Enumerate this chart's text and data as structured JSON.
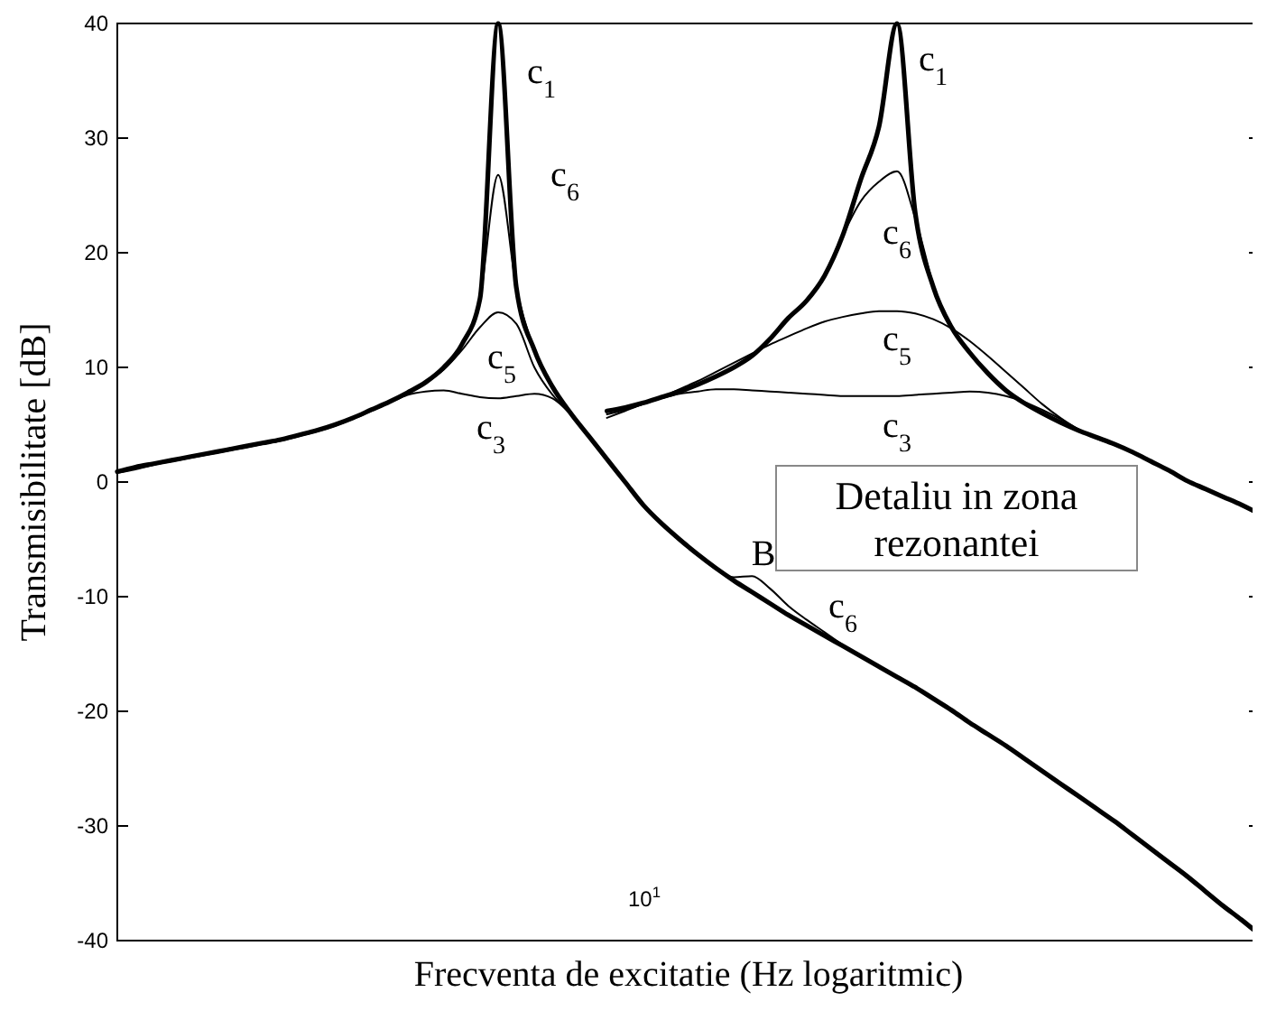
{
  "chart_data": {
    "type": "line",
    "xlabel": "Frecventa de excitatie (Hz logaritmic)",
    "ylabel": "Transmisibilitate [dB]",
    "grid": false,
    "ylim": [
      -40,
      40
    ],
    "yticks": [
      -40,
      -30,
      -20,
      -10,
      0,
      10,
      20,
      30,
      40
    ],
    "categories": [
      null,
      null,
      null,
      null,
      null,
      null,
      null,
      null,
      null,
      null,
      null,
      null,
      null,
      null,
      null,
      null,
      null,
      null,
      null,
      null,
      null,
      null,
      null,
      null,
      null,
      null,
      null,
      null,
      null,
      null,
      null,
      null,
      null,
      null,
      null,
      null,
      null,
      null,
      null,
      null,
      null,
      null,
      null,
      null,
      null,
      null,
      null,
      null,
      null,
      null,
      null,
      null,
      null,
      null,
      null,
      null,
      null,
      null,
      null,
      null,
      null,
      null,
      null,
      null
    ],
    "series": [
      {
        "color": "#000000",
        "values": [
          0.9,
          1.3,
          1.6,
          1.9,
          2.2,
          2.5,
          2.8,
          3.1,
          3.4,
          3.7,
          4.1,
          4.5,
          5.0,
          5.6,
          6.3,
          7.0,
          7.8,
          8.7,
          10,
          12,
          16,
          40,
          17,
          11.5,
          8.3,
          6.0,
          4.0,
          2.0,
          0.0,
          -2.0,
          -3.6,
          -5.0,
          -6.3,
          -7.5,
          -8.6,
          -9.6,
          -10.6,
          -11.6,
          -12.5,
          -13.4,
          -14.3,
          -15.2,
          -16.1,
          -17.0,
          -17.9,
          -18.9,
          -19.9,
          -21.0,
          -22.0,
          -23.0,
          -24.1,
          -25.2,
          -26.3,
          -27.4,
          -28.5,
          -29.6,
          -30.8,
          -32.0,
          -33.2,
          -34.4,
          -35.7,
          -37.0,
          -38.2,
          -39.5
        ]
      },
      {
        "color": "#000000",
        "values": [
          null,
          null,
          null,
          null,
          null,
          null,
          null,
          null,
          null,
          null,
          null,
          null,
          null,
          null,
          null,
          null,
          null,
          null,
          null,
          12,
          16,
          26.8,
          17,
          11.5,
          8.3,
          6.0,
          4.0,
          2.0,
          0.0,
          -2.0,
          -3.6,
          -5.0,
          -6.3,
          -7.6,
          -8.3,
          -8.2,
          -9.3,
          -10.8,
          -12.0,
          -13.1,
          -14.2,
          -15.2,
          -16.1,
          null,
          null,
          null,
          null,
          null,
          null,
          null,
          null,
          null,
          null,
          null,
          null,
          null,
          null,
          null,
          null,
          null,
          null,
          null,
          null,
          null
        ]
      },
      {
        "color": "#000000",
        "values": [
          null,
          null,
          null,
          null,
          null,
          null,
          null,
          null,
          null,
          null,
          null,
          null,
          null,
          null,
          null,
          7.0,
          7.8,
          8.7,
          9.8,
          11.5,
          13.5,
          14.8,
          13.8,
          10.0,
          7.6,
          6.0,
          null,
          null,
          null,
          null,
          null,
          null,
          null,
          null,
          null,
          null,
          null,
          null,
          null,
          null,
          null,
          null,
          null,
          null,
          null,
          null,
          null,
          null,
          null,
          null,
          null,
          null,
          null,
          null,
          null,
          null,
          null,
          null,
          null,
          null,
          null,
          null,
          null,
          null
        ]
      },
      {
        "color": "#000000",
        "values": [
          0.8,
          1.1,
          1.5,
          1.8,
          2.1,
          2.4,
          2.7,
          3.0,
          3.3,
          3.6,
          4.0,
          4.4,
          4.9,
          5.5,
          6.2,
          6.9,
          7.6,
          7.9,
          8.0,
          7.7,
          7.4,
          7.3,
          7.5,
          7.7,
          7.3,
          5.9,
          4.0,
          null,
          null,
          null,
          null,
          null,
          null,
          null,
          null,
          null,
          null,
          null,
          null,
          null,
          null,
          null,
          null,
          null,
          null,
          null,
          null,
          null,
          null,
          null,
          null,
          null,
          null,
          null,
          null,
          null,
          null,
          null,
          null,
          null,
          null,
          null,
          null,
          null
        ]
      },
      {
        "color": "#000000",
        "values": [
          null,
          null,
          null,
          null,
          null,
          null,
          null,
          null,
          null,
          null,
          null,
          null,
          null,
          null,
          null,
          null,
          null,
          null,
          null,
          null,
          null,
          null,
          null,
          null,
          null,
          null,
          null,
          6.2,
          6.5,
          6.9,
          7.4,
          7.9,
          8.5,
          9.2,
          10.0,
          11.0,
          12.5,
          14.3,
          15.8,
          18.0,
          21.5,
          26.4,
          31,
          40,
          23.5,
          17.0,
          13.5,
          11.3,
          9.5,
          8.0,
          6.9,
          6.0,
          5.2,
          4.5,
          3.9,
          3.3,
          2.6,
          1.8,
          1.0,
          0.1,
          -0.6,
          -1.3,
          -2.0,
          -2.8
        ]
      },
      {
        "color": "#000000",
        "values": [
          null,
          null,
          null,
          null,
          null,
          null,
          null,
          null,
          null,
          null,
          null,
          null,
          null,
          null,
          null,
          null,
          null,
          null,
          null,
          null,
          null,
          null,
          null,
          null,
          null,
          null,
          null,
          null,
          null,
          null,
          null,
          null,
          null,
          null,
          null,
          null,
          null,
          null,
          null,
          18.0,
          21.5,
          24.5,
          26.2,
          27.1,
          23.0,
          17.0,
          null,
          null,
          null,
          null,
          null,
          null,
          null,
          null,
          null,
          null,
          null,
          null,
          null,
          null,
          null,
          null,
          null,
          null
        ]
      },
      {
        "color": "#000000",
        "values": [
          null,
          null,
          null,
          null,
          null,
          null,
          null,
          null,
          null,
          null,
          null,
          null,
          null,
          null,
          null,
          null,
          null,
          null,
          null,
          null,
          null,
          null,
          null,
          null,
          null,
          null,
          null,
          5.9,
          6.3,
          6.8,
          7.4,
          8.1,
          8.8,
          9.6,
          10.4,
          11.2,
          12.0,
          12.7,
          13.4,
          14.0,
          14.4,
          14.7,
          14.9,
          14.9,
          14.7,
          14.2,
          13.4,
          12.3,
          11.0,
          9.6,
          8.2,
          6.8,
          5.6,
          4.6,
          3.9,
          3.3,
          2.7,
          null,
          null,
          null,
          null,
          null,
          null,
          null
        ]
      },
      {
        "color": "#000000",
        "values": [
          null,
          null,
          null,
          null,
          null,
          null,
          null,
          null,
          null,
          null,
          null,
          null,
          null,
          null,
          null,
          null,
          null,
          null,
          null,
          null,
          null,
          null,
          null,
          null,
          null,
          null,
          null,
          5.6,
          6.2,
          6.8,
          7.3,
          7.7,
          7.9,
          8.1,
          8.1,
          8.0,
          7.9,
          7.8,
          7.7,
          7.6,
          7.5,
          7.5,
          7.5,
          7.5,
          7.6,
          7.7,
          7.8,
          7.9,
          7.8,
          7.5,
          7.0,
          6.3,
          5.5,
          4.6,
          3.8,
          3.3,
          null,
          null,
          null,
          null,
          null,
          null,
          null,
          null
        ]
      }
    ],
    "annotations": [
      "c$_{1}$",
      "c$_{6}$",
      "c$_{5}$",
      "c$_{3}$",
      "c$_{1}$",
      "c$_{6}$",
      "c$_{5}$",
      "c$_{3}$",
      "B",
      "c$_{6}$",
      "10$^{1}$",
      "Detaliu in zona rezonantei"
    ]
  }
}
